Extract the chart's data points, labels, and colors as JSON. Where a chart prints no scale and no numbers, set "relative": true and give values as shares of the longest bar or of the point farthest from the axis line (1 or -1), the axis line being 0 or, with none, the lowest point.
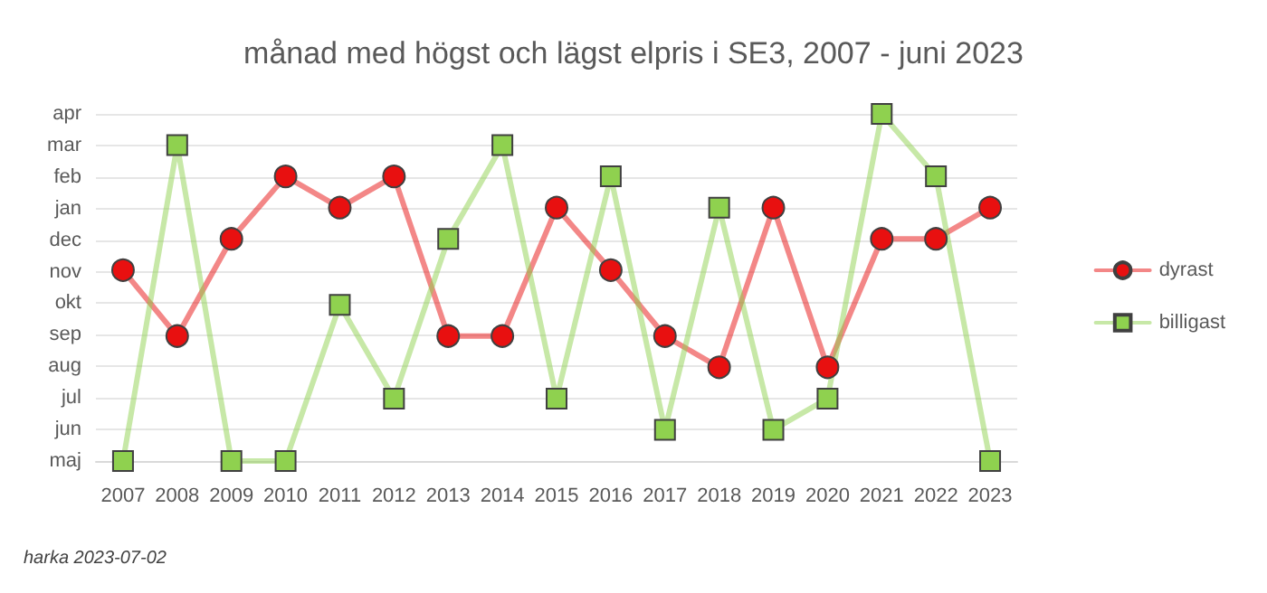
{
  "chart_data": {
    "type": "line",
    "title": "månad med högst och lägst elpris i SE3, 2007 - juni 2023",
    "categories": [
      "2007",
      "2008",
      "2009",
      "2010",
      "2011",
      "2012",
      "2013",
      "2014",
      "2015",
      "2016",
      "2017",
      "2018",
      "2019",
      "2020",
      "2021",
      "2022",
      "2023"
    ],
    "y_categories": [
      "apr",
      "mar",
      "feb",
      "jan",
      "dec",
      "nov",
      "okt",
      "sep",
      "aug",
      "jul",
      "jun",
      "maj"
    ],
    "relative": true,
    "series": [
      {
        "name": "dyrast",
        "color": "#e81010",
        "marker": "circle",
        "values": [
          0.55,
          0.36,
          0.64,
          0.82,
          0.73,
          0.82,
          0.36,
          0.36,
          0.73,
          0.55,
          0.36,
          0.27,
          0.73,
          0.27,
          0.64,
          0.64,
          0.73
        ]
      },
      {
        "name": "billigast",
        "color": "#8fd14f",
        "marker": "square",
        "values": [
          0,
          0.91,
          0,
          0,
          0.45,
          0.18,
          0.64,
          0.91,
          0.18,
          0.82,
          0.09,
          0.73,
          0.09,
          0.18,
          1,
          0.82,
          0
        ]
      }
    ],
    "grid": "y",
    "legend": "right",
    "line_style": "solid",
    "annotations": [
      "harka 2023-07-02"
    ]
  }
}
